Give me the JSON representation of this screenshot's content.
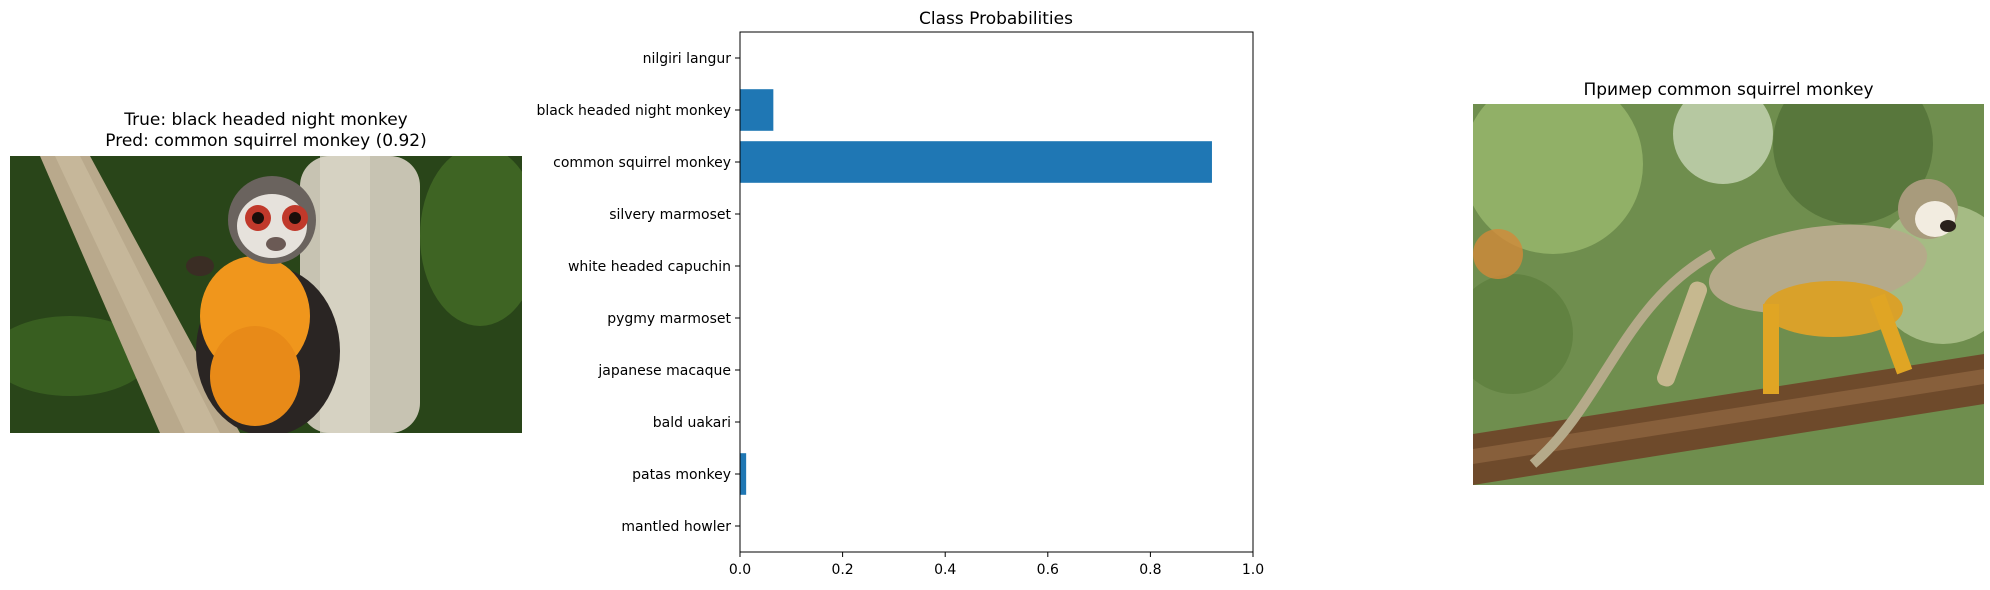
{
  "left_panel": {
    "title_true": "True: black headed night monkey",
    "title_pred": "Pred: common squirrel monkey (0.92)",
    "image": "night-monkey-photo"
  },
  "right_panel": {
    "title": "Пример common squirrel monkey",
    "image": "squirrel-monkey-photo"
  },
  "chart_data": {
    "type": "bar",
    "orientation": "horizontal",
    "title": "Class Probabilities",
    "xlabel": "",
    "ylabel": "",
    "categories": [
      "nilgiri langur",
      "black headed night monkey",
      "common squirrel monkey",
      "silvery marmoset",
      "white headed capuchin",
      "pygmy marmoset",
      "japanese macaque",
      "bald uakari",
      "patas monkey",
      "mantled howler"
    ],
    "values": [
      0.0,
      0.065,
      0.92,
      0.0,
      0.0,
      0.0,
      0.0,
      0.0,
      0.012,
      0.0
    ],
    "xlim": [
      0,
      1
    ],
    "xticks": [
      "0.0",
      "0.2",
      "0.4",
      "0.6",
      "0.8",
      "1.0"
    ],
    "grid": false,
    "bar_color": "#1f77b4"
  }
}
